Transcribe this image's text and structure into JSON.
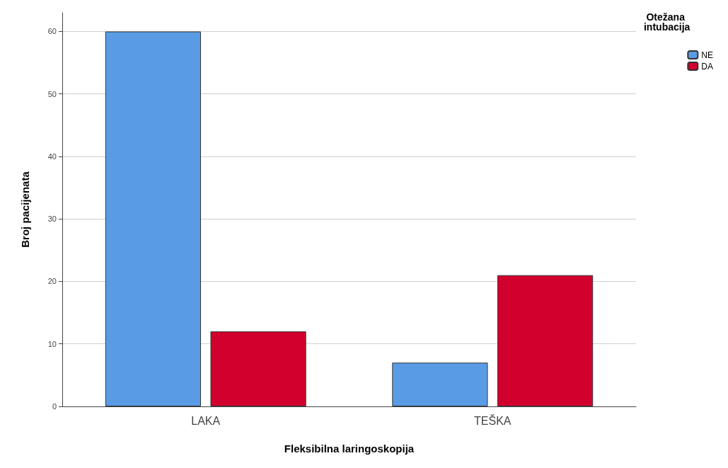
{
  "chart_data": {
    "type": "bar",
    "xlabel": "Fleksibilna laringoskopija",
    "ylabel": "Broj pacijenata",
    "legend_title": "Otežana intubacija",
    "categories": [
      "LAKA",
      "TEŠKA"
    ],
    "series": [
      {
        "name": "NE",
        "color": "#5a9be6",
        "values": [
          60,
          7
        ]
      },
      {
        "name": "DA",
        "color": "#d2002d",
        "values": [
          12,
          21
        ]
      }
    ],
    "ylim": [
      0,
      63
    ],
    "yticks": [
      0,
      10,
      20,
      30,
      40,
      50,
      60
    ],
    "grid": "y",
    "legend": "top right"
  }
}
